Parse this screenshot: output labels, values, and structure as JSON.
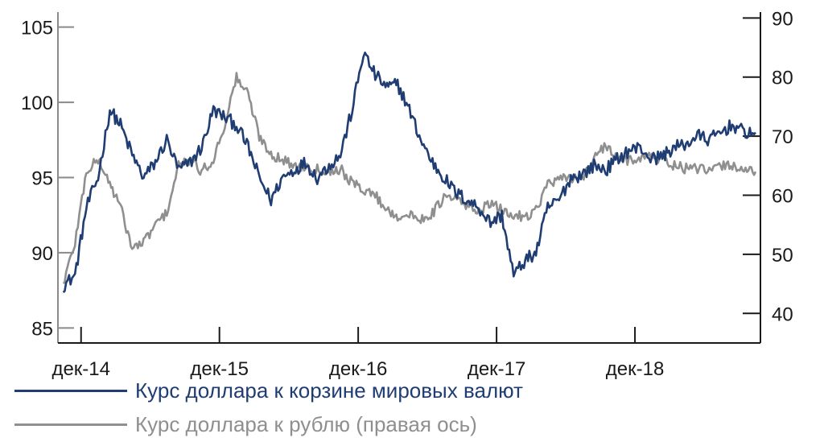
{
  "chart_data": {
    "type": "line",
    "title": "",
    "xlabel": "",
    "ylabel": "",
    "x_ticks": [
      "дек-14",
      "дек-15",
      "дек-16",
      "дек-17",
      "дек-18"
    ],
    "y_left": {
      "range": [
        84,
        106
      ],
      "ticks": [
        85,
        90,
        95,
        100,
        105
      ]
    },
    "y_right": {
      "range": [
        35,
        91
      ],
      "ticks": [
        40,
        50,
        60,
        70,
        80,
        90
      ]
    },
    "grid": false,
    "legend_position": "bottom-left",
    "series": [
      {
        "name": "Курс доллара к корзине мировых валют",
        "axis": "left",
        "color": "#1f3d73",
        "x": [
          "2014-10",
          "2014-11",
          "2014-12",
          "2015-01",
          "2015-02",
          "2015-03",
          "2015-04",
          "2015-05",
          "2015-06",
          "2015-07",
          "2015-08",
          "2015-09",
          "2015-10",
          "2015-11",
          "2015-12",
          "2016-01",
          "2016-02",
          "2016-03",
          "2016-04",
          "2016-05",
          "2016-06",
          "2016-07",
          "2016-08",
          "2016-09",
          "2016-10",
          "2016-11",
          "2016-12",
          "2017-01",
          "2017-02",
          "2017-03",
          "2017-04",
          "2017-05",
          "2017-06",
          "2017-07",
          "2017-08",
          "2017-09",
          "2017-10",
          "2017-11",
          "2017-12",
          "2018-01",
          "2018-02",
          "2018-03",
          "2018-04",
          "2018-05",
          "2018-06",
          "2018-07",
          "2018-08",
          "2018-09",
          "2018-10",
          "2018-11",
          "2018-12",
          "2019-01",
          "2019-02",
          "2019-03",
          "2019-04",
          "2019-05",
          "2019-06",
          "2019-07",
          "2019-08",
          "2019-09",
          "2019-10"
        ],
        "values": [
          87.8,
          88.5,
          93,
          95,
          99.5,
          98.5,
          96.5,
          95,
          96,
          97.5,
          95.5,
          96,
          97,
          99.5,
          99,
          98.5,
          97,
          95,
          93.5,
          95,
          95.5,
          96,
          95,
          95.8,
          96.5,
          99.5,
          102.5,
          101.8,
          101,
          101.2,
          99.5,
          97.5,
          96,
          95,
          94,
          93.5,
          93,
          92,
          92.5,
          89.5,
          89.5,
          90,
          93,
          93.5,
          95,
          95.2,
          95.8,
          95.5,
          96.2,
          96.8,
          97,
          96.2,
          96.5,
          97,
          97.2,
          97.8,
          97.5,
          98,
          98.5,
          98,
          98
        ],
        "min_point": 88.5,
        "max_point": 103.3
      },
      {
        "name": "Курс доллара к рублю (правая ось)",
        "axis": "right",
        "color": "#8f8f8f",
        "x": [
          "2014-10",
          "2014-11",
          "2014-12",
          "2015-01",
          "2015-02",
          "2015-03",
          "2015-04",
          "2015-05",
          "2015-06",
          "2015-07",
          "2015-08",
          "2015-09",
          "2015-10",
          "2015-11",
          "2015-12",
          "2016-01",
          "2016-02",
          "2016-03",
          "2016-04",
          "2016-05",
          "2016-06",
          "2016-07",
          "2016-08",
          "2016-09",
          "2016-10",
          "2016-11",
          "2016-12",
          "2017-01",
          "2017-02",
          "2017-03",
          "2017-04",
          "2017-05",
          "2017-06",
          "2017-07",
          "2017-08",
          "2017-09",
          "2017-10",
          "2017-11",
          "2017-12",
          "2018-01",
          "2018-02",
          "2018-03",
          "2018-04",
          "2018-05",
          "2018-06",
          "2018-07",
          "2018-08",
          "2018-09",
          "2018-10",
          "2018-11",
          "2018-12",
          "2019-01",
          "2019-02",
          "2019-03",
          "2019-04",
          "2019-05",
          "2019-06",
          "2019-07",
          "2019-08",
          "2019-09",
          "2019-10"
        ],
        "values": [
          45,
          52,
          64,
          66,
          62,
          58,
          51,
          52,
          55,
          57,
          65,
          66,
          64,
          66,
          72,
          80,
          77,
          70,
          67,
          66,
          65,
          65,
          64.5,
          64,
          64.5,
          62,
          61,
          60,
          57.5,
          56.5,
          56.5,
          56,
          57,
          59.5,
          59.5,
          58,
          57.5,
          58.5,
          57.5,
          56.5,
          56.5,
          57.5,
          62,
          62.5,
          63,
          63,
          66,
          68.5,
          66,
          66,
          66.5,
          66.5,
          66,
          65,
          64.5,
          64.5,
          64,
          65,
          65,
          64.5,
          64
        ]
      }
    ]
  }
}
